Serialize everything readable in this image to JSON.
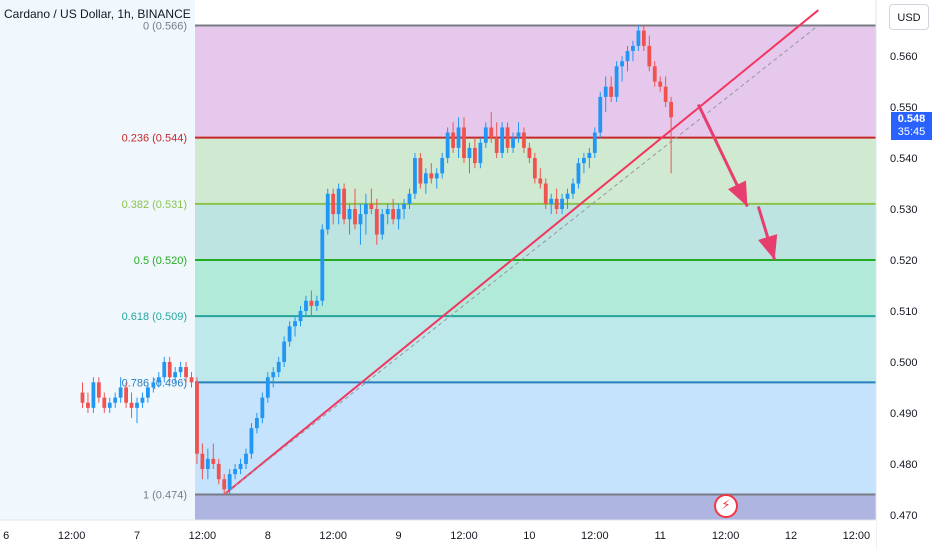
{
  "title": "Cardano / US Dollar, 1h, BINANCE",
  "currency_button": "USD",
  "current_price": {
    "price": "0.548",
    "timer": "35:45"
  },
  "event_icon": "flash-icon",
  "colors": {
    "up": "#2196f3",
    "down": "#ef5350",
    "trendline": "#f23660",
    "arrow": "#e83e6f",
    "grid_border": "#787b86"
  },
  "chart_data": {
    "type": "candlestick",
    "title": "Cardano / US Dollar, 1h, BINANCE",
    "y_axis": {
      "min": 0.469,
      "max": 0.571,
      "ticks": [
        "0.560",
        "0.550",
        "0.540",
        "0.530",
        "0.520",
        "0.510",
        "0.500",
        "0.490",
        "0.480",
        "0.470"
      ]
    },
    "x_axis": {
      "ticks": [
        {
          "label": "6",
          "bar": -14
        },
        {
          "label": "12:00",
          "bar": -2
        },
        {
          "label": "7",
          "bar": 10
        },
        {
          "label": "12:00",
          "bar": 22
        },
        {
          "label": "8",
          "bar": 34
        },
        {
          "label": "12:00",
          "bar": 46
        },
        {
          "label": "9",
          "bar": 58
        },
        {
          "label": "12:00",
          "bar": 70
        },
        {
          "label": "10",
          "bar": 82
        },
        {
          "label": "12:00",
          "bar": 94
        },
        {
          "label": "11",
          "bar": 106
        },
        {
          "label": "12:00",
          "bar": 118
        },
        {
          "label": "12",
          "bar": 130
        },
        {
          "label": "12:00",
          "bar": 142
        }
      ]
    },
    "fib_levels": [
      {
        "label": "0 (0.566)",
        "value": 0.566,
        "color": "#787b86"
      },
      {
        "label": "0.236 (0.544)",
        "value": 0.544,
        "color": "#c62828"
      },
      {
        "label": "0.382 (0.531)",
        "value": 0.531,
        "color": "#8bc34a"
      },
      {
        "label": "0.5 (0.520)",
        "value": 0.52,
        "color": "#22ab22"
      },
      {
        "label": "0.618 (0.509)",
        "value": 0.509,
        "color": "#26a69a"
      },
      {
        "label": "0.786 (0.496)",
        "value": 0.496,
        "color": "#2a7fbf"
      },
      {
        "label": "1 (0.474)",
        "value": 0.474,
        "color": "#787b86"
      }
    ],
    "ohlc": [
      [
        0.494,
        0.496,
        0.491,
        0.492
      ],
      [
        0.492,
        0.494,
        0.49,
        0.491
      ],
      [
        0.491,
        0.497,
        0.49,
        0.496
      ],
      [
        0.496,
        0.497,
        0.492,
        0.493
      ],
      [
        0.493,
        0.494,
        0.49,
        0.491
      ],
      [
        0.491,
        0.493,
        0.49,
        0.492
      ],
      [
        0.492,
        0.494,
        0.491,
        0.493
      ],
      [
        0.493,
        0.497,
        0.492,
        0.495
      ],
      [
        0.495,
        0.496,
        0.491,
        0.492
      ],
      [
        0.492,
        0.494,
        0.489,
        0.491
      ],
      [
        0.491,
        0.493,
        0.488,
        0.492
      ],
      [
        0.492,
        0.494,
        0.491,
        0.493
      ],
      [
        0.493,
        0.496,
        0.492,
        0.495
      ],
      [
        0.495,
        0.497,
        0.494,
        0.496
      ],
      [
        0.496,
        0.498,
        0.495,
        0.497
      ],
      [
        0.497,
        0.501,
        0.496,
        0.5
      ],
      [
        0.5,
        0.501,
        0.496,
        0.497
      ],
      [
        0.497,
        0.499,
        0.496,
        0.498
      ],
      [
        0.498,
        0.5,
        0.497,
        0.499
      ],
      [
        0.499,
        0.5,
        0.496,
        0.497
      ],
      [
        0.497,
        0.498,
        0.495,
        0.496
      ],
      [
        0.496,
        0.497,
        0.48,
        0.482
      ],
      [
        0.482,
        0.484,
        0.477,
        0.479
      ],
      [
        0.479,
        0.483,
        0.477,
        0.481
      ],
      [
        0.481,
        0.484,
        0.479,
        0.48
      ],
      [
        0.48,
        0.481,
        0.476,
        0.477
      ],
      [
        0.477,
        0.478,
        0.474,
        0.475
      ],
      [
        0.475,
        0.479,
        0.474,
        0.478
      ],
      [
        0.478,
        0.48,
        0.477,
        0.479
      ],
      [
        0.479,
        0.481,
        0.478,
        0.48
      ],
      [
        0.48,
        0.483,
        0.479,
        0.482
      ],
      [
        0.482,
        0.488,
        0.481,
        0.487
      ],
      [
        0.487,
        0.49,
        0.486,
        0.489
      ],
      [
        0.489,
        0.494,
        0.488,
        0.493
      ],
      [
        0.493,
        0.498,
        0.492,
        0.497
      ],
      [
        0.497,
        0.499,
        0.495,
        0.498
      ],
      [
        0.498,
        0.501,
        0.497,
        0.5
      ],
      [
        0.5,
        0.505,
        0.499,
        0.504
      ],
      [
        0.504,
        0.508,
        0.503,
        0.507
      ],
      [
        0.507,
        0.509,
        0.505,
        0.508
      ],
      [
        0.508,
        0.511,
        0.507,
        0.51
      ],
      [
        0.51,
        0.513,
        0.509,
        0.512
      ],
      [
        0.512,
        0.514,
        0.509,
        0.511
      ],
      [
        0.511,
        0.513,
        0.51,
        0.512
      ],
      [
        0.512,
        0.527,
        0.511,
        0.526
      ],
      [
        0.526,
        0.534,
        0.525,
        0.533
      ],
      [
        0.533,
        0.534,
        0.527,
        0.529
      ],
      [
        0.529,
        0.535,
        0.527,
        0.534
      ],
      [
        0.534,
        0.535,
        0.527,
        0.528
      ],
      [
        0.528,
        0.531,
        0.525,
        0.53
      ],
      [
        0.53,
        0.534,
        0.526,
        0.527
      ],
      [
        0.527,
        0.531,
        0.523,
        0.529
      ],
      [
        0.529,
        0.533,
        0.525,
        0.531
      ],
      [
        0.531,
        0.534,
        0.529,
        0.53
      ],
      [
        0.53,
        0.532,
        0.523,
        0.525
      ],
      [
        0.525,
        0.53,
        0.524,
        0.529
      ],
      [
        0.529,
        0.531,
        0.527,
        0.53
      ],
      [
        0.53,
        0.532,
        0.527,
        0.528
      ],
      [
        0.528,
        0.531,
        0.526,
        0.53
      ],
      [
        0.53,
        0.532,
        0.528,
        0.531
      ],
      [
        0.531,
        0.534,
        0.53,
        0.533
      ],
      [
        0.533,
        0.541,
        0.532,
        0.54
      ],
      [
        0.54,
        0.541,
        0.534,
        0.535
      ],
      [
        0.535,
        0.538,
        0.533,
        0.537
      ],
      [
        0.537,
        0.539,
        0.535,
        0.536
      ],
      [
        0.536,
        0.538,
        0.534,
        0.537
      ],
      [
        0.537,
        0.541,
        0.536,
        0.54
      ],
      [
        0.54,
        0.546,
        0.539,
        0.545
      ],
      [
        0.545,
        0.547,
        0.541,
        0.542
      ],
      [
        0.542,
        0.548,
        0.54,
        0.546
      ],
      [
        0.546,
        0.548,
        0.539,
        0.54
      ],
      [
        0.54,
        0.543,
        0.537,
        0.542
      ],
      [
        0.542,
        0.544,
        0.538,
        0.539
      ],
      [
        0.539,
        0.544,
        0.538,
        0.543
      ],
      [
        0.543,
        0.547,
        0.542,
        0.546
      ],
      [
        0.546,
        0.549,
        0.543,
        0.544
      ],
      [
        0.544,
        0.547,
        0.54,
        0.541
      ],
      [
        0.541,
        0.547,
        0.54,
        0.546
      ],
      [
        0.546,
        0.547,
        0.541,
        0.542
      ],
      [
        0.542,
        0.545,
        0.541,
        0.544
      ],
      [
        0.544,
        0.547,
        0.543,
        0.545
      ],
      [
        0.545,
        0.546,
        0.541,
        0.542
      ],
      [
        0.542,
        0.543,
        0.539,
        0.54
      ],
      [
        0.54,
        0.541,
        0.535,
        0.536
      ],
      [
        0.536,
        0.538,
        0.534,
        0.535
      ],
      [
        0.535,
        0.536,
        0.53,
        0.531
      ],
      [
        0.531,
        0.533,
        0.529,
        0.532
      ],
      [
        0.532,
        0.534,
        0.529,
        0.53
      ],
      [
        0.53,
        0.533,
        0.529,
        0.532
      ],
      [
        0.532,
        0.534,
        0.53,
        0.533
      ],
      [
        0.533,
        0.536,
        0.532,
        0.535
      ],
      [
        0.535,
        0.54,
        0.534,
        0.539
      ],
      [
        0.539,
        0.541,
        0.537,
        0.54
      ],
      [
        0.54,
        0.542,
        0.538,
        0.541
      ],
      [
        0.541,
        0.546,
        0.54,
        0.545
      ],
      [
        0.545,
        0.553,
        0.544,
        0.552
      ],
      [
        0.552,
        0.556,
        0.549,
        0.554
      ],
      [
        0.554,
        0.556,
        0.551,
        0.552
      ],
      [
        0.552,
        0.559,
        0.551,
        0.558
      ],
      [
        0.558,
        0.56,
        0.555,
        0.559
      ],
      [
        0.559,
        0.562,
        0.557,
        0.561
      ],
      [
        0.561,
        0.563,
        0.559,
        0.562
      ],
      [
        0.562,
        0.566,
        0.561,
        0.565
      ],
      [
        0.565,
        0.566,
        0.561,
        0.562
      ],
      [
        0.562,
        0.564,
        0.557,
        0.558
      ],
      [
        0.558,
        0.559,
        0.554,
        0.555
      ],
      [
        0.555,
        0.556,
        0.553,
        0.554
      ],
      [
        0.554,
        0.556,
        0.55,
        0.551
      ],
      [
        0.551,
        0.552,
        0.537,
        0.548
      ]
    ],
    "trendlines": [
      {
        "style": "solid",
        "color": "#f23660",
        "from": {
          "bar": 26,
          "price": 0.474
        },
        "to": {
          "bar": 135,
          "price": 0.569
        }
      },
      {
        "style": "dashed",
        "color": "#9598a1",
        "from": {
          "bar": 26,
          "price": 0.474
        },
        "to": {
          "bar": 135,
          "price": 0.566
        }
      }
    ],
    "arrows": [
      {
        "from": {
          "bar": 113,
          "price": 0.5505
        },
        "to": {
          "bar": 122,
          "price": 0.5305
        }
      },
      {
        "from": {
          "bar": 124,
          "price": 0.5305
        },
        "to": {
          "bar": 127,
          "price": 0.52
        }
      }
    ]
  }
}
